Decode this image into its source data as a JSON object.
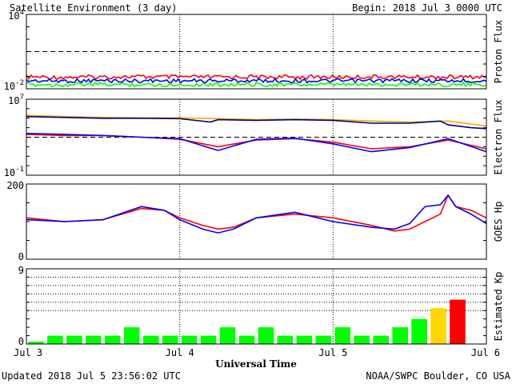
{
  "header": {
    "title": "Satellite Environment (3 day)",
    "begin": "Begin:  2018 Jul 3 0000 UTC"
  },
  "footer": {
    "updated": "Updated 2018 Jul  5 23:56:02 UTC",
    "credit": "NOAA/SWPC Boulder, CO USA"
  },
  "colors": {
    "red": "#ff0000",
    "blue": "#0000ff",
    "green": "#00ff00",
    "orange": "#ffa500",
    "navy": "#000080",
    "kp_green": "#00ff00",
    "kp_yellow": "#ffd700",
    "kp_red": "#ff0000"
  },
  "chart_data": [
    {
      "type": "line",
      "name": "proton-flux",
      "ylabel": "Proton Flux",
      "yscale": "log",
      "ylim": [
        0.01,
        10000
      ],
      "y_tick_labels": [
        {
          "base": "10",
          "exp": "4",
          "value": 10000
        },
        {
          "base": "10",
          "exp": "-2",
          "value": 0.01
        }
      ],
      "threshold": 10,
      "series": [
        {
          "color": "red",
          "values": [
            0.09,
            0.085,
            0.09,
            0.095,
            0.09,
            0.088,
            0.092,
            0.09,
            0.087,
            0.09,
            0.093,
            0.09,
            0.088,
            0.09
          ]
        },
        {
          "color": "blue",
          "values": [
            0.045,
            0.043,
            0.046,
            0.044,
            0.045,
            0.043,
            0.046,
            0.045,
            0.044,
            0.043,
            0.045,
            0.046,
            0.044,
            0.045
          ]
        },
        {
          "color": "green",
          "values": [
            0.022,
            0.021,
            0.023,
            0.022,
            0.021,
            0.022,
            0.023,
            0.022,
            0.021,
            0.022,
            0.022,
            0.023,
            0.021,
            0.022
          ]
        }
      ]
    },
    {
      "type": "line",
      "name": "electron-flux",
      "ylabel": "Electron Flux",
      "yscale": "log",
      "ylim": [
        0.1,
        10000000
      ],
      "y_tick_labels": [
        {
          "base": "10",
          "exp": "7",
          "value": 10000000
        },
        {
          "base": "10",
          "exp": "-1",
          "value": 0.1
        }
      ],
      "threshold": 1000,
      "series": [
        {
          "color": "orange",
          "x": [
            0,
            0.25,
            0.5,
            0.75,
            1.0,
            1.25,
            1.5,
            1.75,
            2.0,
            2.25,
            2.5,
            2.75,
            3.0
          ],
          "values": [
            200000,
            150000,
            120000,
            110000,
            110000,
            90000,
            70000,
            80000,
            70000,
            50000,
            40000,
            50000,
            15000
          ]
        },
        {
          "color": "navy",
          "x": [
            0,
            0.25,
            0.5,
            0.75,
            1.0,
            1.2,
            1.25,
            1.5,
            1.75,
            2.0,
            2.25,
            2.5,
            2.7,
            2.75,
            2.9,
            3.0
          ],
          "values": [
            150000,
            120000,
            100000,
            100000,
            90000,
            40000,
            70000,
            60000,
            70000,
            60000,
            30000,
            30000,
            50000,
            20000,
            10000,
            8000
          ]
        },
        {
          "color": "red",
          "x": [
            0,
            0.25,
            0.5,
            0.75,
            1.0,
            1.25,
            1.5,
            1.75,
            2.0,
            2.25,
            2.5,
            2.75,
            3.0
          ],
          "values": [
            2000,
            1500,
            1500,
            1000,
            600,
            100,
            500,
            700,
            300,
            60,
            100,
            500,
            60
          ]
        },
        {
          "color": "blue",
          "x": [
            0,
            0.25,
            0.5,
            0.75,
            1.0,
            1.25,
            1.5,
            1.75,
            2.0,
            2.25,
            2.5,
            2.75,
            3.0
          ],
          "values": [
            2500,
            2000,
            1500,
            1000,
            700,
            40,
            600,
            800,
            200,
            30,
            80,
            700,
            30
          ]
        }
      ]
    },
    {
      "type": "line",
      "name": "goes-hp",
      "ylabel": "GOES Hp",
      "yscale": "linear",
      "ylim": [
        0,
        200
      ],
      "y_tick_labels": [
        {
          "base": "200",
          "exp": "",
          "value": 200
        },
        {
          "base": "0",
          "exp": "",
          "value": 0
        }
      ],
      "series": [
        {
          "color": "red",
          "x": [
            0,
            0.25,
            0.5,
            0.75,
            0.9,
            1.0,
            1.15,
            1.25,
            1.35,
            1.5,
            1.75,
            2.0,
            2.25,
            2.4,
            2.5,
            2.6,
            2.7,
            2.75,
            2.8,
            2.9,
            3.0
          ],
          "values": [
            110,
            100,
            105,
            135,
            130,
            110,
            90,
            80,
            85,
            110,
            120,
            110,
            90,
            75,
            80,
            100,
            120,
            170,
            140,
            130,
            110
          ]
        },
        {
          "color": "blue",
          "x": [
            0,
            0.25,
            0.5,
            0.75,
            0.9,
            1.0,
            1.15,
            1.25,
            1.35,
            1.5,
            1.75,
            2.0,
            2.25,
            2.4,
            2.5,
            2.6,
            2.7,
            2.75,
            2.8,
            2.9,
            3.0
          ],
          "values": [
            105,
            100,
            105,
            140,
            130,
            105,
            80,
            70,
            80,
            110,
            125,
            100,
            85,
            80,
            95,
            140,
            145,
            170,
            140,
            120,
            95
          ]
        }
      ]
    },
    {
      "type": "bar",
      "name": "estimated-kp",
      "ylabel": "Estimated Kp",
      "ylim": [
        0,
        9
      ],
      "y_tick_labels": [
        {
          "base": "9",
          "exp": "",
          "value": 9
        },
        {
          "base": "0",
          "exp": "",
          "value": 0
        }
      ],
      "values": [
        0.3,
        1,
        1,
        1,
        1,
        2,
        1,
        1,
        1,
        1,
        2,
        1,
        2,
        1,
        1,
        1,
        2,
        1,
        1,
        2,
        3,
        4.3,
        5.3
      ],
      "bar_colors": [
        "kp_green",
        "kp_green",
        "kp_green",
        "kp_green",
        "kp_green",
        "kp_green",
        "kp_green",
        "kp_green",
        "kp_green",
        "kp_green",
        "kp_green",
        "kp_green",
        "kp_green",
        "kp_green",
        "kp_green",
        "kp_green",
        "kp_green",
        "kp_green",
        "kp_green",
        "kp_green",
        "kp_green",
        "kp_yellow",
        "kp_red"
      ]
    }
  ],
  "x_axis": {
    "label": "Universal Time",
    "ticks": [
      {
        "label": "Jul 3",
        "value": 0
      },
      {
        "label": "Jul 4",
        "value": 1
      },
      {
        "label": "Jul 5",
        "value": 2
      },
      {
        "label": "Jul 6",
        "value": 3
      }
    ]
  }
}
